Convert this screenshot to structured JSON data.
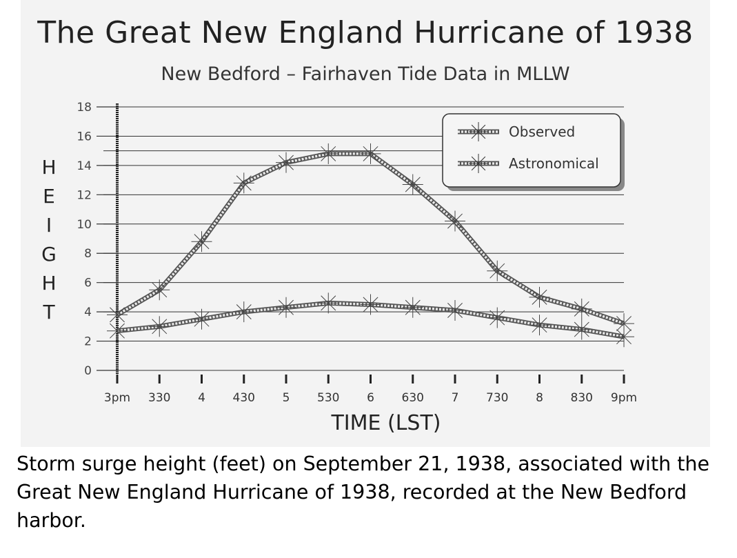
{
  "caption": "Storm surge height (feet) on September 21, 1938, associated with the Great New England Hurricane of 1938, recorded at the New Bedford harbor.",
  "colors": {
    "background": "#ffffff",
    "scan": "#f3f3f3",
    "ink": "#222222"
  },
  "chart_data": {
    "type": "line",
    "title": "The Great New England Hurricane of 1938",
    "subtitle": "New Bedford – Fairhaven Tide Data in MLLW",
    "xlabel": "TIME (LST)",
    "ylabel_letters": [
      "H",
      "E",
      "I",
      "G",
      "H",
      "T"
    ],
    "ylim": [
      0,
      18
    ],
    "yticks": [
      "0",
      "2",
      "4",
      "6",
      "8",
      "10",
      "12",
      "14",
      "16",
      "18"
    ],
    "categories": [
      "3pm",
      "330",
      "4",
      "430",
      "5",
      "530",
      "6",
      "630",
      "7",
      "730",
      "8",
      "830",
      "9pm"
    ],
    "series": [
      {
        "name": "Observed",
        "values": [
          3.8,
          5.5,
          8.8,
          12.8,
          14.2,
          14.8,
          14.8,
          12.7,
          10.2,
          6.8,
          5.0,
          4.2,
          3.2
        ]
      },
      {
        "name": "Astronomical",
        "values": [
          2.7,
          3.0,
          3.5,
          4.0,
          4.3,
          4.6,
          4.5,
          4.3,
          4.1,
          3.6,
          3.1,
          2.8,
          2.3
        ]
      }
    ],
    "grid": true,
    "legend_position": "top-right"
  }
}
